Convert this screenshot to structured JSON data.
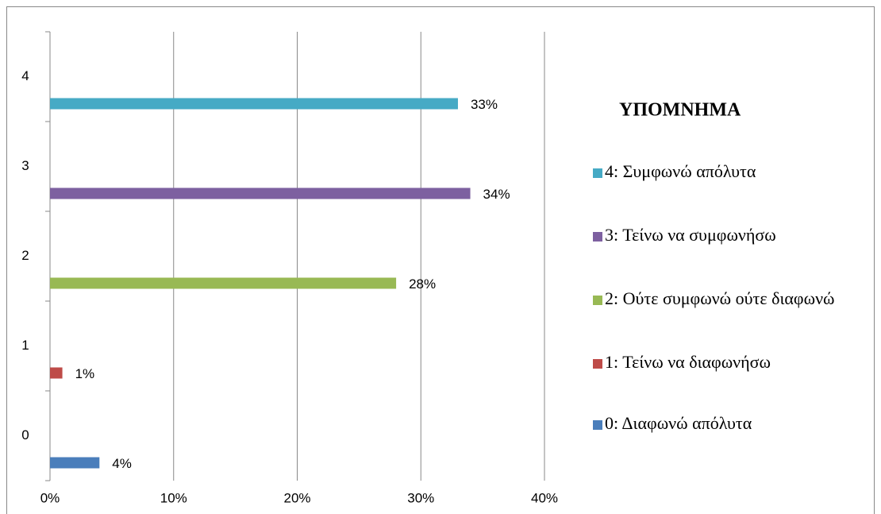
{
  "chart_data": {
    "type": "bar",
    "orientation": "horizontal",
    "categories": [
      "0",
      "1",
      "2",
      "3",
      "4"
    ],
    "values": [
      4,
      1,
      28,
      34,
      33
    ],
    "value_labels": [
      "4%",
      "1%",
      "28%",
      "34%",
      "33%"
    ],
    "colors": [
      "#4a7ebb",
      "#be4b48",
      "#98b954",
      "#7d60a0",
      "#46aac5"
    ],
    "xlim": [
      0,
      40
    ],
    "xticks": [
      {
        "value": 0,
        "label": "0%"
      },
      {
        "value": 10,
        "label": "10%"
      },
      {
        "value": 20,
        "label": "20%"
      },
      {
        "value": 30,
        "label": "30%"
      },
      {
        "value": 40,
        "label": "40%"
      }
    ],
    "grid": true,
    "legend_title": "ΥΠΟΜΝΗΜΑ",
    "legend_labels": [
      "0: Διαφωνώ απόλυτα",
      "1: Τείνω να διαφωνήσω",
      "2: Ούτε συμφωνώ ούτε διαφωνώ",
      "3: Τείνω να συμφωνήσω",
      "4: Συμφωνώ απόλυτα"
    ],
    "legend": "right"
  }
}
